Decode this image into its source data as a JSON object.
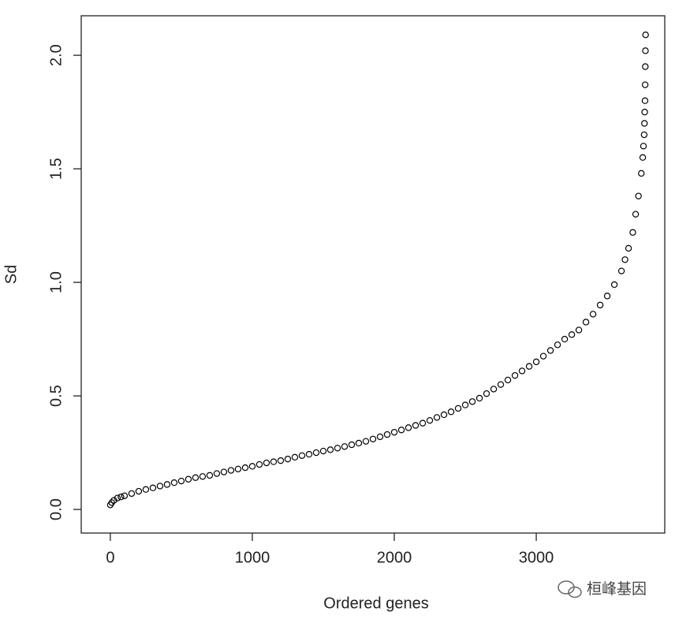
{
  "chart_data": {
    "type": "scatter",
    "x_label": "Ordered genes",
    "y_label": "Sd",
    "x": [
      0,
      10,
      25,
      50,
      75,
      100,
      150,
      200,
      250,
      300,
      350,
      400,
      450,
      500,
      550,
      600,
      650,
      700,
      750,
      800,
      850,
      900,
      950,
      1000,
      1050,
      1100,
      1150,
      1200,
      1250,
      1300,
      1350,
      1400,
      1450,
      1500,
      1550,
      1600,
      1650,
      1700,
      1750,
      1800,
      1850,
      1900,
      1950,
      2000,
      2050,
      2100,
      2150,
      2200,
      2250,
      2300,
      2350,
      2400,
      2450,
      2500,
      2550,
      2600,
      2650,
      2700,
      2750,
      2800,
      2850,
      2900,
      2950,
      3000,
      3050,
      3100,
      3150,
      3200,
      3250,
      3300,
      3350,
      3400,
      3450,
      3500,
      3550,
      3600,
      3625,
      3650,
      3680,
      3700,
      3720,
      3740,
      3750,
      3755,
      3760,
      3762,
      3764,
      3766,
      3767,
      3768,
      3769,
      3770
    ],
    "series": [
      {
        "name": "Sd",
        "color": "#000000",
        "values": [
          0.02,
          0.03,
          0.04,
          0.05,
          0.055,
          0.06,
          0.07,
          0.08,
          0.088,
          0.095,
          0.103,
          0.11,
          0.118,
          0.125,
          0.133,
          0.14,
          0.145,
          0.15,
          0.158,
          0.165,
          0.172,
          0.178,
          0.184,
          0.19,
          0.198,
          0.205,
          0.21,
          0.215,
          0.222,
          0.23,
          0.237,
          0.243,
          0.25,
          0.257,
          0.263,
          0.27,
          0.277,
          0.285,
          0.292,
          0.3,
          0.31,
          0.32,
          0.33,
          0.34,
          0.35,
          0.36,
          0.37,
          0.38,
          0.392,
          0.405,
          0.417,
          0.43,
          0.445,
          0.46,
          0.475,
          0.49,
          0.51,
          0.53,
          0.55,
          0.57,
          0.59,
          0.61,
          0.63,
          0.65,
          0.675,
          0.7,
          0.725,
          0.75,
          0.77,
          0.79,
          0.825,
          0.86,
          0.9,
          0.94,
          0.99,
          1.05,
          1.1,
          1.15,
          1.22,
          1.3,
          1.38,
          1.48,
          1.55,
          1.6,
          1.65,
          1.7,
          1.75,
          1.8,
          1.87,
          1.95,
          2.02,
          2.09
        ]
      }
    ],
    "xlim": [
      -205,
      3905
    ],
    "ylim": [
      -0.104,
      2.174
    ],
    "xticks": [
      0,
      1000,
      2000,
      3000
    ],
    "yticks": [
      {
        "value": 0,
        "label": "0.0"
      },
      0.5,
      {
        "value": 1,
        "label": "1.0"
      },
      1.5,
      {
        "value": 2,
        "label": "2.0"
      }
    ],
    "marker": "open-circle"
  },
  "watermark": "桓峰基因"
}
